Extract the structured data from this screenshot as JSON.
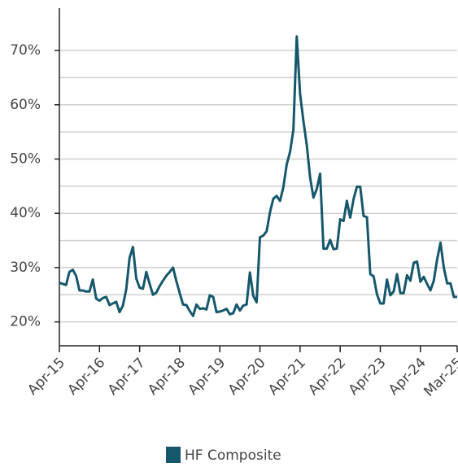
{
  "chart_data": {
    "type": "line",
    "x": [
      0,
      1,
      2,
      3,
      4,
      5,
      6,
      7,
      8,
      9,
      10,
      11,
      12,
      13,
      14,
      15,
      16,
      17,
      18,
      19,
      20,
      21,
      22,
      23,
      24,
      25,
      26,
      27,
      28,
      29,
      30,
      31,
      32,
      33,
      34,
      35,
      36,
      37,
      38,
      39,
      40,
      41,
      42,
      43,
      44,
      45,
      46,
      47,
      48,
      49,
      50,
      51,
      52,
      53,
      54,
      55,
      56,
      57,
      58,
      59,
      60,
      61,
      62,
      63,
      64,
      65,
      66,
      67,
      68,
      69,
      70,
      71,
      72,
      73,
      74,
      75,
      76,
      77,
      78,
      79,
      80,
      81,
      82,
      83,
      84,
      85,
      86,
      87,
      88,
      89,
      90,
      91,
      92,
      93,
      94,
      95,
      96,
      97,
      98,
      99,
      100,
      101,
      102,
      103,
      104,
      105,
      106,
      107,
      108,
      109,
      110,
      111,
      112,
      113,
      114,
      115,
      116,
      117,
      118,
      119
    ],
    "series": [
      {
        "name": "HF Composite",
        "color": "#15576b",
        "values": [
          27.2,
          27.0,
          26.8,
          29.2,
          29.6,
          28.5,
          25.8,
          25.8,
          25.6,
          25.6,
          27.8,
          24.3,
          23.9,
          24.4,
          24.6,
          23.1,
          23.4,
          23.7,
          21.8,
          23.0,
          26.0,
          31.8,
          33.8,
          28.0,
          26.3,
          26.1,
          29.2,
          27.0,
          25.0,
          25.4,
          26.6,
          27.6,
          28.5,
          29.2,
          30.0,
          27.5,
          25.3,
          23.2,
          23.1,
          22.0,
          21.1,
          23.2,
          22.4,
          22.5,
          22.3,
          24.9,
          24.6,
          21.8,
          21.9,
          22.1,
          22.4,
          21.4,
          21.6,
          23.2,
          22.1,
          23.0,
          23.2,
          29.1,
          24.8,
          23.6,
          35.6,
          35.9,
          36.7,
          40.2,
          42.7,
          43.2,
          42.3,
          44.8,
          49.0,
          51.3,
          55.4,
          72.6,
          62.0,
          57.0,
          52.6,
          46.6,
          42.9,
          44.5,
          47.3,
          33.5,
          33.5,
          35.1,
          33.4,
          33.5,
          38.9,
          38.6,
          42.3,
          39.2,
          42.6,
          44.9,
          44.9,
          39.5,
          39.3,
          28.8,
          28.4,
          25.1,
          23.4,
          23.4,
          27.8,
          24.9,
          25.6,
          28.8,
          25.3,
          25.3,
          28.6,
          27.6,
          30.9,
          31.1,
          27.4,
          28.3,
          27.0,
          25.8,
          27.6,
          31.5,
          34.6,
          30.0,
          27.1,
          27.1,
          24.6,
          24.6
        ]
      }
    ],
    "xlim": [
      0,
      119
    ],
    "xticks": [
      {
        "value": 0,
        "label": "Apr-15"
      },
      {
        "value": 12,
        "label": "Apr-16"
      },
      {
        "value": 24,
        "label": "Apr-17"
      },
      {
        "value": 36,
        "label": "Apr-18"
      },
      {
        "value": 48,
        "label": "Apr-19"
      },
      {
        "value": 60,
        "label": "Apr-20"
      },
      {
        "value": 72,
        "label": "Apr-21"
      },
      {
        "value": 84,
        "label": "Apr-22"
      },
      {
        "value": 96,
        "label": "Apr-23"
      },
      {
        "value": 108,
        "label": "Apr-24"
      },
      {
        "value": 119,
        "label": "Mar-25"
      }
    ],
    "ylim": [
      15.6,
      77.8
    ],
    "yticks": [
      {
        "value": 20,
        "label": "20%"
      },
      {
        "value": 30,
        "label": "30%"
      },
      {
        "value": 40,
        "label": "40%"
      },
      {
        "value": 50,
        "label": "50%"
      },
      {
        "value": 60,
        "label": "60%"
      },
      {
        "value": 70,
        "label": "70%"
      }
    ],
    "minor_yticks": [
      25,
      35,
      45,
      55,
      65
    ],
    "grid": true,
    "legend": "bottom"
  }
}
